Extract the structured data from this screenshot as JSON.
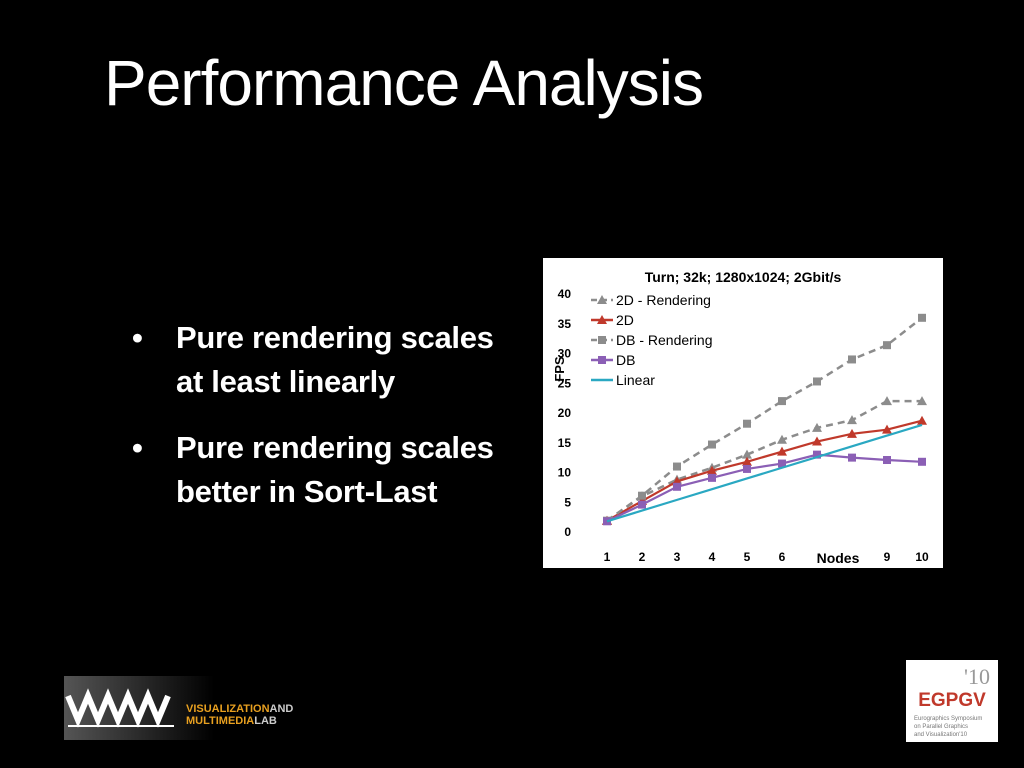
{
  "slide": {
    "title": "Performance Analysis",
    "bullets": [
      {
        "dot": "•",
        "line1": "Pure rendering scales",
        "line2": "at least linearly"
      },
      {
        "dot": "•",
        "line1": "Pure rendering scales",
        "line2": "better in Sort-Last"
      }
    ]
  },
  "logos": {
    "lab_line1a": "VISUALIZATION",
    "lab_line1b": "AND",
    "lab_line2a": "MULTIMEDIA",
    "lab_line2b": "LAB",
    "egpgv_year": "'10",
    "egpgv_name": "EGPGV",
    "egpgv_sub1": "Eurographics Symposium",
    "egpgv_sub2": "on Parallel Graphics",
    "egpgv_sub3": "and Visualization'10"
  },
  "chart_data": {
    "type": "line",
    "title": "Turn; 32k; 1280x1024; 2Gbit/s",
    "xlabel": "Nodes",
    "ylabel": "FPS",
    "x": [
      1,
      2,
      3,
      4,
      5,
      6,
      7,
      8,
      9,
      10
    ],
    "x_tick_labels": [
      "1",
      "2",
      "3",
      "4",
      "5",
      "6",
      "",
      "",
      "9",
      "10"
    ],
    "ylim": [
      0,
      40
    ],
    "y_ticks": [
      0,
      5,
      10,
      15,
      20,
      25,
      30,
      35,
      40
    ],
    "grid": false,
    "legend_position": "top-left",
    "series": [
      {
        "name": "2D - Rendering",
        "color": "#8c8c8c",
        "marker": "triangle",
        "dashed": true,
        "values": [
          1.9,
          6.0,
          8.8,
          10.8,
          13.0,
          15.5,
          17.5,
          18.8,
          22.0,
          22.0
        ]
      },
      {
        "name": "2D",
        "color": "#c0392b",
        "marker": "triangle",
        "dashed": false,
        "values": [
          1.9,
          5.2,
          8.5,
          10.3,
          11.8,
          13.5,
          15.2,
          16.5,
          17.2,
          18.7
        ]
      },
      {
        "name": "DB - Rendering",
        "color": "#8c8c8c",
        "marker": "square",
        "dashed": true,
        "values": [
          1.9,
          6.1,
          11.0,
          14.7,
          18.2,
          22.0,
          25.3,
          29.0,
          31.4,
          36.0
        ]
      },
      {
        "name": "DB",
        "color": "#8b5fb5",
        "marker": "square",
        "dashed": false,
        "values": [
          1.8,
          4.6,
          7.6,
          9.1,
          10.6,
          11.5,
          13.0,
          12.5,
          12.1,
          11.8
        ]
      },
      {
        "name": "Linear",
        "color": "#2aa8c2",
        "marker": "none",
        "dashed": false,
        "values": [
          1.8,
          3.6,
          5.4,
          7.2,
          9.0,
          10.8,
          12.6,
          14.4,
          16.2,
          18.0
        ]
      }
    ]
  }
}
